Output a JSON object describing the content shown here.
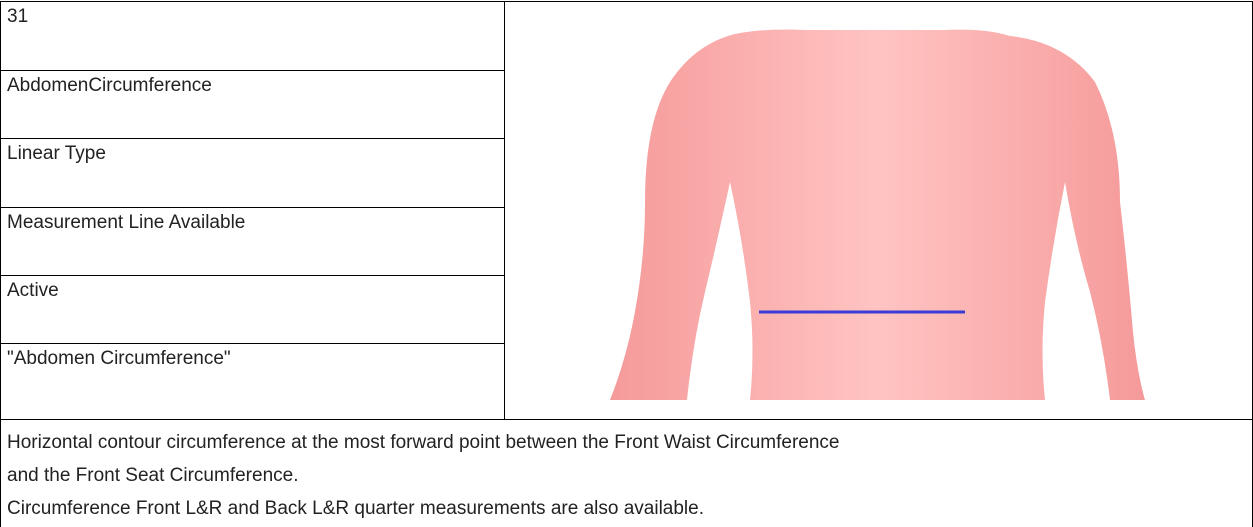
{
  "rows": [
    "31",
    "AbdomenCircumference",
    "Linear Type",
    "Measurement Line Available",
    "Active",
    "\"Abdomen Circumference\""
  ],
  "description": [
    "Horizontal contour circumference at the most forward point between the Front Waist Circumference",
    "and the Front Seat Circumference.",
    "Circumference Front L&R and Back L&R quarter measurements are also available."
  ]
}
